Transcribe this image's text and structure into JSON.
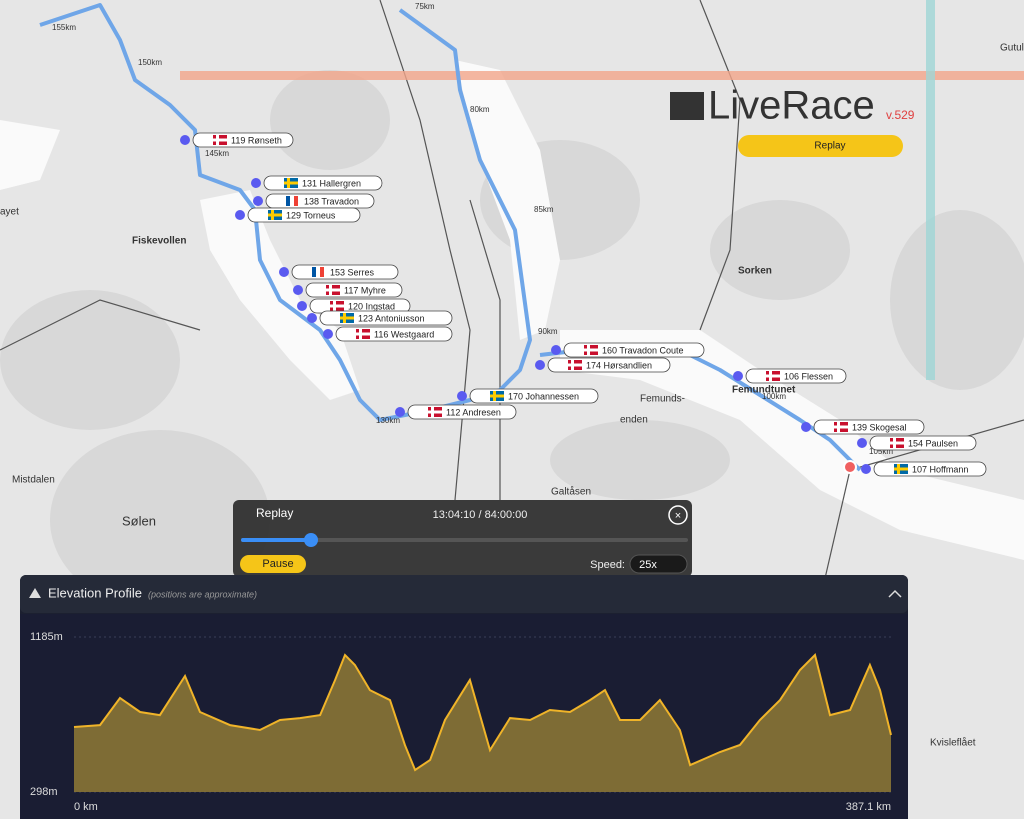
{
  "logo": {
    "name": "LiveRace",
    "version": "v.529"
  },
  "replay_button": "Replay",
  "map": {
    "places": [
      "Fiskevollen",
      "Sorken",
      "Femunds-",
      "enden",
      "Galtåsen",
      "Sølen",
      "Mistdalen",
      "Kvisleflået",
      "Femundtunet",
      "ayet",
      "Gutul"
    ],
    "km_markers": [
      "155km",
      "150km",
      "145km",
      "75km",
      "80km",
      "85km",
      "90km",
      "130km",
      "100km",
      "105km"
    ],
    "riders": [
      "119 Rønseth",
      "131 Hallergren",
      "138 Travadon",
      "129 Torneus",
      "153 Serres",
      "117 Myhre",
      "120 Ingstad",
      "123 Antoniusson",
      "116 Westgaard",
      "170 Johannessen",
      "112 Andresen",
      "160 Travadon Coute",
      "174 Hørsandlien",
      "106 Flessen",
      "139 Skogesal",
      "154 Paulsen",
      "107 Hoffmann"
    ]
  },
  "player": {
    "title": "Replay",
    "time": "13:04:10 / 84:00:00",
    "pause": "Pause",
    "speed_label": "Speed:",
    "speed": "25x"
  },
  "elevation_profile": {
    "title": "Elevation Profile",
    "note": "(positions are approximate)",
    "ylim": [
      {
        "value": 298,
        "label": "298m"
      },
      {
        "value": 1185,
        "label": "1185m"
      }
    ],
    "xlim": [
      {
        "value": 0,
        "label": "0 km"
      },
      {
        "value": 387.1,
        "label": "387.1 km"
      }
    ],
    "distance_km": [
      0,
      12.3,
      21.8,
      31.3,
      40.7,
      52.6,
      59.7,
      73.9,
      88.1,
      97.6,
      107.1,
      116.6,
      123.7,
      128.4,
      133.1,
      140.2,
      149.7,
      156.8,
      161.6,
      168.7,
      175.8,
      187.6,
      197.1,
      206.6,
      216.1,
      225.5,
      235.0,
      244.5,
      251.6,
      258.7,
      268.2,
      277.6,
      287.1,
      291.9,
      306.1,
      315.5,
      325.0,
      334.5,
      344.0,
      351.1,
      358.2,
      367.7,
      377.1,
      381.9,
      387.1
    ],
    "elevation_m": [
      670,
      681,
      836,
      756,
      738,
      962,
      756,
      681,
      653,
      710,
      721,
      738,
      939,
      1082,
      1025,
      881,
      824,
      567,
      424,
      481,
      710,
      939,
      538,
      721,
      710,
      767,
      756,
      824,
      881,
      710,
      710,
      824,
      653,
      452,
      527,
      567,
      710,
      824,
      996,
      1082,
      738,
      767,
      1025,
      881,
      624
    ]
  }
}
